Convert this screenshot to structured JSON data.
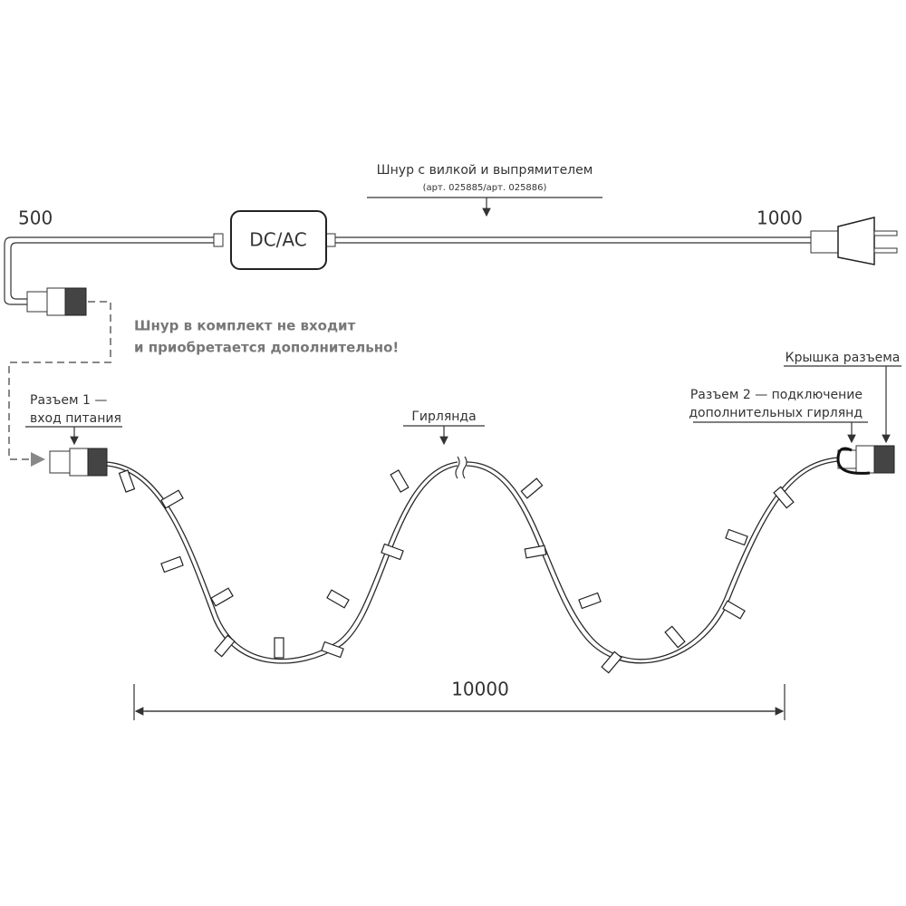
{
  "cord": {
    "title": "Шнур с вилкой и выпрямителем",
    "article": "(арт. 025885/арт. 025886)",
    "left_length": "500",
    "right_length": "1000",
    "box_label": "DC/AC"
  },
  "note": {
    "line1": "Шнур в комплект не входит",
    "line2": "и приобретается дополнительно!"
  },
  "connector1": {
    "line1": "Разъем 1 —",
    "line2": "вход питания"
  },
  "garland": {
    "label": "Гирлянда",
    "length": "10000"
  },
  "cap": {
    "label": "Крышка разъема"
  },
  "connector2": {
    "line1": "Разъем 2 — подключение",
    "line2": "дополнительных гирлянд"
  }
}
